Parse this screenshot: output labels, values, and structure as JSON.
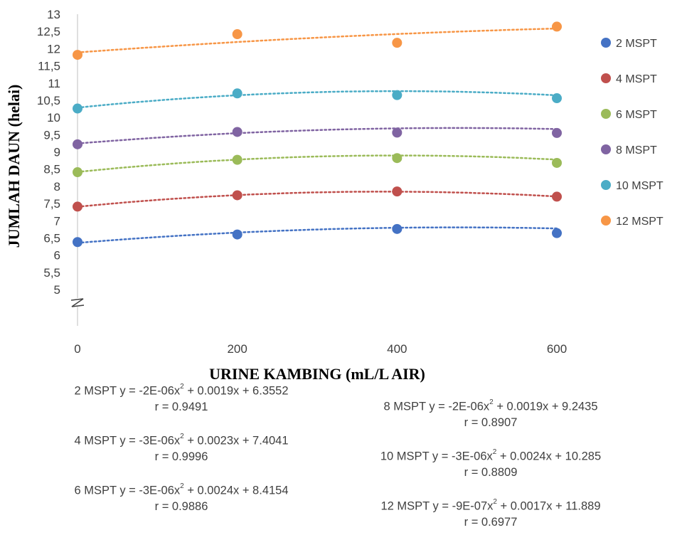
{
  "chart_data": {
    "type": "scatter",
    "x": [
      0,
      200,
      400,
      600
    ],
    "xticks": [
      "0",
      "200",
      "400",
      "600"
    ],
    "xlabel": "URINE KAMBING (mL/L AIR)",
    "ylabel": "JUMLAH DAUN (helai)",
    "yticks": [
      "5",
      "5,5",
      "6",
      "6,5",
      "7",
      "7,5",
      "8",
      "8,5",
      "9",
      "9,5",
      "10",
      "10,5",
      "11",
      "11,5",
      "12",
      "12,5",
      "13"
    ],
    "ylim": [
      5,
      13
    ],
    "axis_break": true,
    "trendline": "polynomial (order 2), dotted",
    "legend_position": "right",
    "series": [
      {
        "name": "2 MSPT",
        "color": "#4472C4",
        "values": [
          6.38,
          6.6,
          6.76,
          6.64
        ],
        "coef": [
          -2e-06,
          0.0019,
          6.3552
        ]
      },
      {
        "name": "4 MSPT",
        "color": "#C0504D",
        "values": [
          7.41,
          7.74,
          7.85,
          7.7
        ],
        "coef": [
          -3e-06,
          0.0023,
          7.4041
        ]
      },
      {
        "name": "6 MSPT",
        "color": "#9BBB59",
        "values": [
          8.41,
          8.77,
          8.82,
          8.68
        ],
        "coef": [
          -3e-06,
          0.0024,
          8.4154
        ]
      },
      {
        "name": "8 MSPT",
        "color": "#8064A2",
        "values": [
          9.22,
          9.58,
          9.56,
          9.55
        ],
        "coef": [
          -2e-06,
          0.0019,
          9.2435
        ]
      },
      {
        "name": "10 MSPT",
        "color": "#4BACC6",
        "values": [
          10.26,
          10.7,
          10.65,
          10.56
        ],
        "coef": [
          -3e-06,
          0.0024,
          10.285
        ]
      },
      {
        "name": "12 MSPT",
        "color": "#F79646",
        "values": [
          11.82,
          12.42,
          12.17,
          12.64
        ],
        "coef": [
          -9e-07,
          0.0017,
          11.889
        ]
      }
    ]
  },
  "equations": [
    {
      "pre": "2 MSPT y = -2E-06x",
      "post": " + 0.0019x + 6.3552",
      "r": "r = 0.9491"
    },
    {
      "pre": "4 MSPT y = -3E-06x",
      "post": " + 0.0023x + 7.4041",
      "r": "r = 0.9996"
    },
    {
      "pre": "6 MSPT y = -3E-06x",
      "post": " + 0.0024x + 8.4154",
      "r": "r = 0.9886"
    },
    {
      "pre": "8 MSPT y = -2E-06x",
      "post": " + 0.0019x + 9.2435",
      "r": "r = 0.8907"
    },
    {
      "pre": "10 MSPT y = -3E-06x",
      "post": " + 0.0024x + 10.285",
      "r": "r = 0.8809"
    },
    {
      "pre": "12 MSPT y = -9E-07x",
      "post": " + 0.0017x + 11.889",
      "r": "r = 0.6977"
    }
  ],
  "sup": "2"
}
